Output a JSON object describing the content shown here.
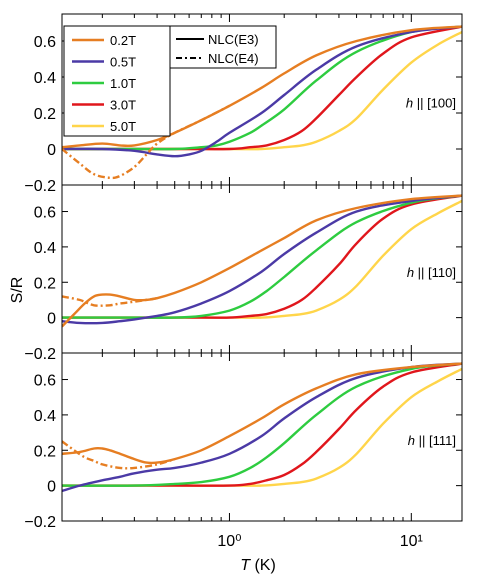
{
  "chart_data": {
    "type": "line",
    "xscale": "log",
    "xlim": [
      0.12,
      19
    ],
    "xlabel": "T (K)",
    "ylabel": "S/R",
    "ylim": [
      -0.2,
      0.75
    ],
    "x_ticks": [
      1,
      10
    ],
    "x_tick_labels": [
      "10⁰",
      "10¹"
    ],
    "y_ticks": [
      -0.2,
      0,
      0.2,
      0.4,
      0.6
    ],
    "y_tick_labels": [
      "−0.2",
      "0",
      "0.2",
      "0.4",
      "0.6"
    ],
    "legend_fields": [
      {
        "name": "0.2T",
        "color": "#e67e22"
      },
      {
        "name": "0.5T",
        "color": "#4b3aa6"
      },
      {
        "name": "1.0T",
        "color": "#2ecc40"
      },
      {
        "name": "3.0T",
        "color": "#e0161c"
      },
      {
        "name": "5.0T",
        "color": "#ffd54a"
      }
    ],
    "legend_methods": [
      {
        "name": "NLC(E3)",
        "style": "solid"
      },
      {
        "name": "NLC(E4)",
        "style": "dashdot"
      }
    ],
    "panels": [
      {
        "annotation": "h || [100]",
        "series": [
          {
            "field": "0.2T",
            "method": "E3",
            "color": "#e67e22",
            "x": [
              0.12,
              0.15,
              0.2,
              0.25,
              0.3,
              0.4,
              0.5,
              0.7,
              1.0,
              1.5,
              2,
              3,
              5,
              10,
              19
            ],
            "y": [
              0.01,
              0.02,
              0.03,
              0.02,
              0.02,
              0.05,
              0.09,
              0.16,
              0.24,
              0.34,
              0.42,
              0.52,
              0.6,
              0.66,
              0.68
            ]
          },
          {
            "field": "0.2T",
            "method": "E4",
            "color": "#e67e22",
            "x": [
              0.12,
              0.15,
              0.18,
              0.22,
              0.25,
              0.3,
              0.35,
              0.4,
              0.5,
              0.7,
              1.0
            ],
            "y": [
              0.0,
              -0.08,
              -0.14,
              -0.16,
              -0.15,
              -0.1,
              -0.03,
              0.03,
              0.09,
              0.16,
              0.24
            ]
          },
          {
            "field": "0.5T",
            "method": "E3",
            "color": "#4b3aa6",
            "x": [
              0.12,
              0.2,
              0.3,
              0.4,
              0.5,
              0.6,
              0.7,
              0.85,
              1.0,
              1.5,
              2,
              3,
              5,
              10,
              19
            ],
            "y": [
              0.0,
              0.0,
              -0.01,
              -0.03,
              -0.04,
              -0.03,
              -0.01,
              0.04,
              0.09,
              0.2,
              0.3,
              0.44,
              0.57,
              0.65,
              0.68
            ]
          },
          {
            "field": "1.0T",
            "method": "E3",
            "color": "#2ecc40",
            "x": [
              0.12,
              0.3,
              0.5,
              0.7,
              0.85,
              1.0,
              1.3,
              1.5,
              2,
              3,
              5,
              10,
              19
            ],
            "y": [
              0.0,
              0.0,
              0.0,
              0.01,
              0.02,
              0.04,
              0.09,
              0.13,
              0.22,
              0.38,
              0.54,
              0.65,
              0.68
            ]
          },
          {
            "field": "3.0T",
            "method": "E3",
            "color": "#e0161c",
            "x": [
              0.12,
              0.5,
              1.0,
              1.3,
              1.6,
              2,
              2.5,
              3,
              4,
              5,
              7,
              10,
              19
            ],
            "y": [
              0.0,
              0.0,
              0.0,
              0.01,
              0.02,
              0.05,
              0.1,
              0.17,
              0.3,
              0.4,
              0.53,
              0.62,
              0.68
            ]
          },
          {
            "field": "5.0T",
            "method": "E3",
            "color": "#ffd54a",
            "x": [
              0.12,
              1.0,
              1.5,
              2,
              2.5,
              3,
              4,
              5,
              7,
              10,
              14,
              19
            ],
            "y": [
              0.0,
              0.0,
              0.0,
              0.01,
              0.02,
              0.04,
              0.1,
              0.17,
              0.33,
              0.48,
              0.58,
              0.65
            ]
          }
        ]
      },
      {
        "annotation": "h || [110]",
        "series": [
          {
            "field": "0.2T",
            "method": "E3",
            "color": "#e67e22",
            "x": [
              0.12,
              0.14,
              0.16,
              0.18,
              0.2,
              0.22,
              0.25,
              0.3,
              0.35,
              0.4,
              0.5,
              0.7,
              1.0,
              1.5,
              2,
              3,
              5,
              10,
              19
            ],
            "y": [
              -0.05,
              0.02,
              0.08,
              0.12,
              0.13,
              0.13,
              0.12,
              0.1,
              0.1,
              0.11,
              0.14,
              0.2,
              0.28,
              0.38,
              0.45,
              0.55,
              0.62,
              0.67,
              0.69
            ]
          },
          {
            "field": "0.2T",
            "method": "E4",
            "color": "#e67e22",
            "x": [
              0.12,
              0.15,
              0.18,
              0.22,
              0.25,
              0.3,
              0.4
            ],
            "y": [
              0.12,
              0.1,
              0.07,
              0.07,
              0.08,
              0.09,
              0.11
            ]
          },
          {
            "field": "0.5T",
            "method": "E3",
            "color": "#4b3aa6",
            "x": [
              0.12,
              0.15,
              0.2,
              0.25,
              0.3,
              0.4,
              0.5,
              0.7,
              1.0,
              1.5,
              2,
              3,
              5,
              10,
              19
            ],
            "y": [
              -0.02,
              -0.03,
              -0.03,
              -0.02,
              -0.01,
              0.01,
              0.03,
              0.08,
              0.15,
              0.26,
              0.36,
              0.48,
              0.6,
              0.66,
              0.69
            ]
          },
          {
            "field": "1.0T",
            "method": "E3",
            "color": "#2ecc40",
            "x": [
              0.12,
              0.3,
              0.5,
              0.7,
              1.0,
              1.3,
              1.6,
              2,
              3,
              5,
              10,
              19
            ],
            "y": [
              0.0,
              0.0,
              0.0,
              0.01,
              0.04,
              0.09,
              0.15,
              0.23,
              0.38,
              0.54,
              0.65,
              0.69
            ]
          },
          {
            "field": "3.0T",
            "method": "E3",
            "color": "#e0161c",
            "x": [
              0.12,
              0.7,
              1.0,
              1.3,
              1.6,
              2,
              2.5,
              3,
              4,
              5,
              7,
              10,
              19
            ],
            "y": [
              0.0,
              0.0,
              0.0,
              0.01,
              0.02,
              0.05,
              0.1,
              0.17,
              0.3,
              0.42,
              0.56,
              0.64,
              0.69
            ]
          },
          {
            "field": "5.0T",
            "method": "E3",
            "color": "#ffd54a",
            "x": [
              0.12,
              1.0,
              1.5,
              2,
              2.5,
              3,
              4,
              5,
              7,
              10,
              14,
              19
            ],
            "y": [
              0.0,
              0.0,
              0.0,
              0.01,
              0.02,
              0.04,
              0.1,
              0.18,
              0.35,
              0.5,
              0.59,
              0.66
            ]
          }
        ]
      },
      {
        "annotation": "h || [111]",
        "series": [
          {
            "field": "0.2T",
            "method": "E3",
            "color": "#e67e22",
            "x": [
              0.12,
              0.15,
              0.18,
              0.2,
              0.22,
              0.25,
              0.3,
              0.35,
              0.4,
              0.5,
              0.7,
              1.0,
              1.5,
              2,
              3,
              5,
              10,
              19
            ],
            "y": [
              0.18,
              0.19,
              0.21,
              0.21,
              0.2,
              0.18,
              0.15,
              0.13,
              0.13,
              0.15,
              0.2,
              0.28,
              0.38,
              0.46,
              0.55,
              0.63,
              0.67,
              0.69
            ]
          },
          {
            "field": "0.2T",
            "method": "E4",
            "color": "#e67e22",
            "x": [
              0.12,
              0.14,
              0.16,
              0.18,
              0.2,
              0.25,
              0.3,
              0.4,
              0.5
            ],
            "y": [
              0.25,
              0.2,
              0.16,
              0.14,
              0.12,
              0.1,
              0.1,
              0.12,
              0.15
            ]
          },
          {
            "field": "0.5T",
            "method": "E3",
            "color": "#4b3aa6",
            "x": [
              0.12,
              0.15,
              0.2,
              0.25,
              0.3,
              0.4,
              0.5,
              0.7,
              1.0,
              1.5,
              2,
              3,
              5,
              10,
              19
            ],
            "y": [
              -0.03,
              0.0,
              0.03,
              0.05,
              0.07,
              0.09,
              0.1,
              0.13,
              0.18,
              0.28,
              0.38,
              0.5,
              0.61,
              0.67,
              0.69
            ]
          },
          {
            "field": "1.0T",
            "method": "E3",
            "color": "#2ecc40",
            "x": [
              0.12,
              0.3,
              0.5,
              0.7,
              1.0,
              1.3,
              1.6,
              2,
              3,
              5,
              10,
              19
            ],
            "y": [
              0.0,
              0.0,
              0.01,
              0.02,
              0.05,
              0.1,
              0.16,
              0.24,
              0.4,
              0.56,
              0.66,
              0.69
            ]
          },
          {
            "field": "3.0T",
            "method": "E3",
            "color": "#e0161c",
            "x": [
              0.12,
              0.5,
              1.0,
              1.3,
              1.6,
              2,
              2.5,
              3,
              4,
              5,
              7,
              10,
              19
            ],
            "y": [
              0.0,
              0.0,
              0.0,
              0.01,
              0.03,
              0.06,
              0.12,
              0.19,
              0.32,
              0.43,
              0.56,
              0.64,
              0.69
            ]
          },
          {
            "field": "5.0T",
            "method": "E3",
            "color": "#ffd54a",
            "x": [
              0.12,
              1.0,
              1.5,
              2,
              2.5,
              3,
              4,
              5,
              7,
              10,
              14,
              19
            ],
            "y": [
              0.0,
              0.0,
              0.0,
              0.01,
              0.02,
              0.04,
              0.1,
              0.18,
              0.35,
              0.5,
              0.59,
              0.66
            ]
          }
        ]
      }
    ]
  }
}
